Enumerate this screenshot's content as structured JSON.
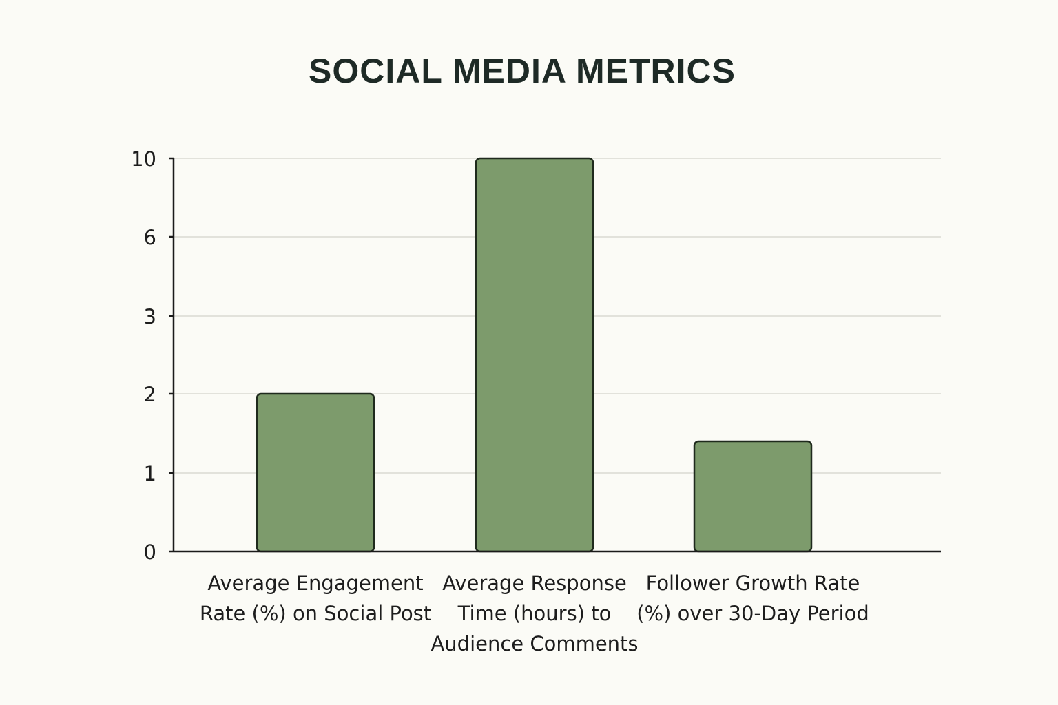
{
  "chart_data": {
    "type": "bar",
    "title": "SOCIAL MEDIA METRICS",
    "xlabel": "",
    "ylabel": "",
    "categories": [
      [
        "Average Engagement",
        "Rate (%) on Social Post"
      ],
      [
        "Average Response",
        "Time (hours) to",
        "Audience Comments"
      ],
      [
        "Follower Growth Rate",
        "(%) over 30-Day Period"
      ]
    ],
    "values": [
      2,
      10,
      1.4
    ],
    "y_ticks": [
      "0",
      "1",
      "2",
      "3",
      "6",
      "10"
    ],
    "y_tick_values": [
      0,
      1,
      2,
      3,
      6,
      10
    ],
    "ylim": [
      0,
      10
    ],
    "grid": true,
    "bar_color": "#7d9b6c",
    "bar_edge_color": "#1f2a1d"
  }
}
